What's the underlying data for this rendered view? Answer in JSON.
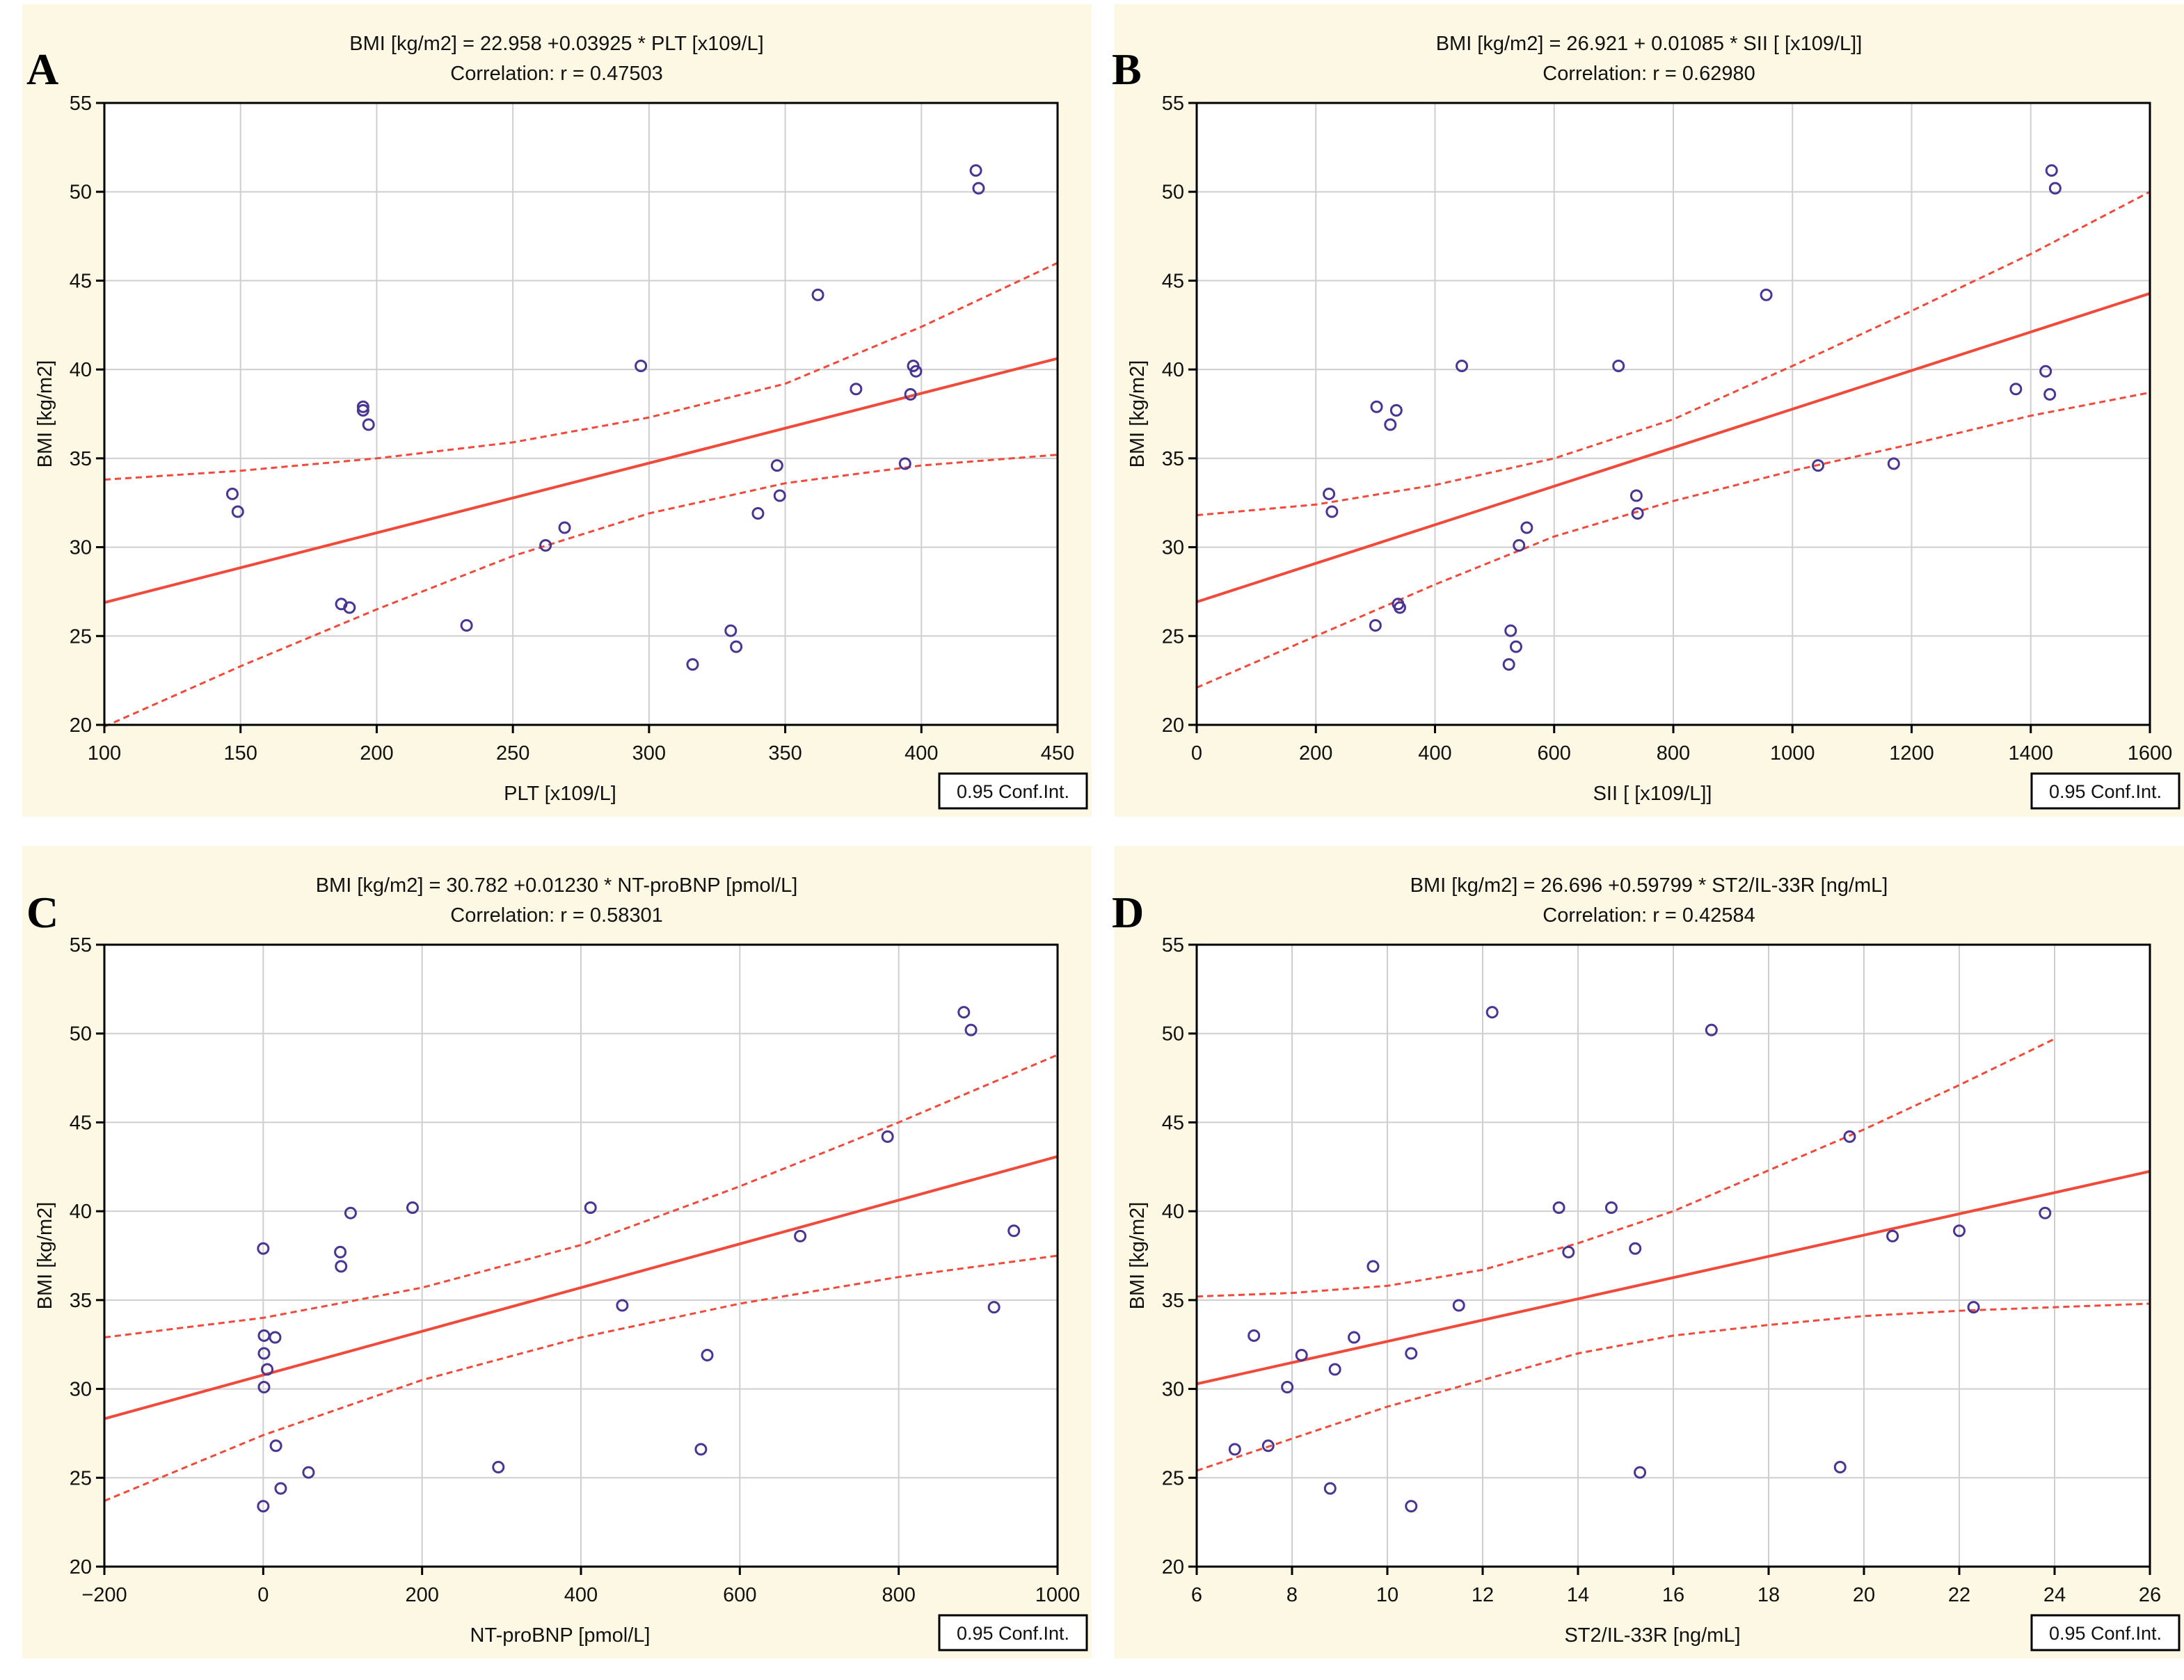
{
  "conf_int_label": "0.95 Conf.Int.",
  "chart_data": [
    {
      "panel": "A",
      "type": "scatter",
      "title": "BMI [kg/m2] = 22.958 +0.03925 * PLT [x109/L]",
      "subtitle": "Correlation: r = 0.47503",
      "xlabel": "PLT [x109/L]",
      "ylabel": "BMI [kg/m2]",
      "xlim": [
        100,
        450
      ],
      "ylim": [
        20,
        55
      ],
      "xticks": [
        100,
        150,
        200,
        250,
        300,
        350,
        400,
        450
      ],
      "xtick_labels": [
        "100",
        "150",
        "200",
        "250",
        "300",
        "350",
        "400",
        "450"
      ],
      "yticks": [
        20,
        25,
        30,
        35,
        40,
        45,
        50,
        55
      ],
      "ytick_labels": [
        "20",
        "25",
        "30",
        "35",
        "40",
        "45",
        "50",
        "55"
      ],
      "regression": {
        "intercept": 22.958,
        "slope": 0.03925
      },
      "ci_upper": [
        [
          100,
          33.8
        ],
        [
          150,
          34.3
        ],
        [
          200,
          35.0
        ],
        [
          250,
          35.9
        ],
        [
          300,
          37.3
        ],
        [
          350,
          39.2
        ],
        [
          400,
          42.4
        ],
        [
          450,
          46.0
        ]
      ],
      "ci_lower": [
        [
          100,
          19.9
        ],
        [
          150,
          23.3
        ],
        [
          200,
          26.5
        ],
        [
          250,
          29.5
        ],
        [
          300,
          31.9
        ],
        [
          350,
          33.6
        ],
        [
          400,
          34.6
        ],
        [
          450,
          35.2
        ]
      ],
      "points": [
        [
          147,
          33.0
        ],
        [
          149,
          32.0
        ],
        [
          187,
          26.8
        ],
        [
          190,
          26.6
        ],
        [
          195,
          37.9
        ],
        [
          195,
          37.7
        ],
        [
          197,
          36.9
        ],
        [
          233,
          25.6
        ],
        [
          262,
          30.1
        ],
        [
          269,
          31.1
        ],
        [
          297,
          40.2
        ],
        [
          316,
          23.4
        ],
        [
          330,
          25.3
        ],
        [
          332,
          24.4
        ],
        [
          340,
          31.9
        ],
        [
          347,
          34.6
        ],
        [
          348,
          32.9
        ],
        [
          362,
          44.2
        ],
        [
          376,
          38.9
        ],
        [
          394,
          34.7
        ],
        [
          396,
          38.6
        ],
        [
          397,
          40.2
        ],
        [
          398,
          39.9
        ],
        [
          420,
          51.2
        ],
        [
          421,
          50.2
        ]
      ],
      "conf_int": "0.95 Conf.Int."
    },
    {
      "panel": "B",
      "type": "scatter",
      "title": "BMI [kg/m2] = 26.921 + 0.01085 * SII [ [x109/L]]",
      "subtitle": "Correlation: r = 0.62980",
      "xlabel": "SII [ [x109/L]]",
      "ylabel": "BMI [kg/m2]",
      "xlim": [
        0,
        1600
      ],
      "ylim": [
        20,
        55
      ],
      "xticks": [
        0,
        200,
        400,
        600,
        800,
        1000,
        1200,
        1400,
        1600
      ],
      "xtick_labels": [
        "0",
        "200",
        "400",
        "600",
        "800",
        "1000",
        "1200",
        "1400",
        "1600"
      ],
      "yticks": [
        20,
        25,
        30,
        35,
        40,
        45,
        50,
        55
      ],
      "ytick_labels": [
        "20",
        "25",
        "30",
        "35",
        "40",
        "45",
        "50",
        "55"
      ],
      "regression": {
        "intercept": 26.921,
        "slope": 0.01085
      },
      "ci_upper": [
        [
          0,
          31.8
        ],
        [
          200,
          32.4
        ],
        [
          400,
          33.5
        ],
        [
          600,
          35.0
        ],
        [
          800,
          37.2
        ],
        [
          1000,
          40.2
        ],
        [
          1200,
          43.3
        ],
        [
          1400,
          46.5
        ],
        [
          1600,
          50.0
        ]
      ],
      "ci_lower": [
        [
          0,
          22.1
        ],
        [
          200,
          25.0
        ],
        [
          400,
          27.9
        ],
        [
          600,
          30.6
        ],
        [
          800,
          32.6
        ],
        [
          1000,
          34.3
        ],
        [
          1200,
          35.8
        ],
        [
          1400,
          37.4
        ],
        [
          1600,
          38.7
        ]
      ],
      "points": [
        [
          222,
          33.0
        ],
        [
          227,
          32.0
        ],
        [
          300,
          25.6
        ],
        [
          302,
          37.9
        ],
        [
          325,
          36.9
        ],
        [
          335,
          37.7
        ],
        [
          338,
          26.8
        ],
        [
          341,
          26.6
        ],
        [
          445,
          40.2
        ],
        [
          524,
          23.4
        ],
        [
          527,
          25.3
        ],
        [
          536,
          24.4
        ],
        [
          541,
          30.1
        ],
        [
          554,
          31.1
        ],
        [
          708,
          40.2
        ],
        [
          738,
          32.9
        ],
        [
          740,
          31.9
        ],
        [
          956,
          44.2
        ],
        [
          1043,
          34.6
        ],
        [
          1170,
          34.7
        ],
        [
          1375,
          38.9
        ],
        [
          1425,
          39.9
        ],
        [
          1432,
          38.6
        ],
        [
          1435,
          51.2
        ],
        [
          1441,
          50.2
        ]
      ],
      "conf_int": "0.95 Conf.Int."
    },
    {
      "panel": "C",
      "type": "scatter",
      "title": "BMI [kg/m2] = 30.782 +0.01230 * NT-proBNP [pmol/L]",
      "subtitle": "Correlation: r = 0.58301",
      "xlabel": "NT-proBNP [pmol/L]",
      "ylabel": "BMI [kg/m2]",
      "xlim": [
        -200,
        1000
      ],
      "ylim": [
        20,
        55
      ],
      "xticks": [
        -200,
        0,
        200,
        400,
        600,
        800,
        1000
      ],
      "xtick_labels": [
        "−200",
        "0",
        "200",
        "400",
        "600",
        "800",
        "1000"
      ],
      "yticks": [
        20,
        25,
        30,
        35,
        40,
        45,
        50,
        55
      ],
      "ytick_labels": [
        "20",
        "25",
        "30",
        "35",
        "40",
        "45",
        "50",
        "55"
      ],
      "regression": {
        "intercept": 30.782,
        "slope": 0.0123
      },
      "ci_upper": [
        [
          -200,
          32.9
        ],
        [
          0,
          34.0
        ],
        [
          200,
          35.7
        ],
        [
          400,
          38.1
        ],
        [
          600,
          41.4
        ],
        [
          800,
          45.0
        ],
        [
          1000,
          48.8
        ]
      ],
      "ci_lower": [
        [
          -200,
          23.7
        ],
        [
          0,
          27.4
        ],
        [
          200,
          30.5
        ],
        [
          400,
          32.9
        ],
        [
          600,
          34.8
        ],
        [
          800,
          36.3
        ],
        [
          1000,
          37.5
        ]
      ],
      "points": [
        [
          0,
          37.9
        ],
        [
          1,
          33.0
        ],
        [
          1,
          32.0
        ],
        [
          1,
          30.1
        ],
        [
          0,
          23.4
        ],
        [
          5,
          31.1
        ],
        [
          15,
          32.9
        ],
        [
          16,
          26.8
        ],
        [
          22,
          24.4
        ],
        [
          57,
          25.3
        ],
        [
          97,
          37.7
        ],
        [
          98,
          36.9
        ],
        [
          110,
          39.9
        ],
        [
          188,
          40.2
        ],
        [
          296,
          25.6
        ],
        [
          412,
          40.2
        ],
        [
          452,
          34.7
        ],
        [
          551,
          26.6
        ],
        [
          559,
          31.9
        ],
        [
          676,
          38.6
        ],
        [
          786,
          44.2
        ],
        [
          882,
          51.2
        ],
        [
          891,
          50.2
        ],
        [
          920,
          34.6
        ],
        [
          945,
          38.9
        ]
      ],
      "conf_int": "0.95 Conf.Int."
    },
    {
      "panel": "D",
      "type": "scatter",
      "title": "BMI [kg/m2] = 26.696 +0.59799 * ST2/IL-33R [ng/mL]",
      "subtitle": "Correlation: r = 0.42584",
      "xlabel": "ST2/IL-33R [ng/mL]",
      "ylabel": "BMI [kg/m2]",
      "xlim": [
        6,
        26
      ],
      "ylim": [
        20,
        55
      ],
      "xticks": [
        6,
        8,
        10,
        12,
        14,
        16,
        18,
        20,
        22,
        24,
        26
      ],
      "xtick_labels": [
        "6",
        "8",
        "10",
        "12",
        "14",
        "16",
        "18",
        "20",
        "22",
        "24",
        "26"
      ],
      "yticks": [
        20,
        25,
        30,
        35,
        40,
        45,
        50,
        55
      ],
      "ytick_labels": [
        "20",
        "25",
        "30",
        "35",
        "40",
        "45",
        "50",
        "55"
      ],
      "regression": {
        "intercept": 26.696,
        "slope": 0.59799
      },
      "ci_upper": [
        [
          6,
          35.2
        ],
        [
          8,
          35.4
        ],
        [
          10,
          35.8
        ],
        [
          12,
          36.7
        ],
        [
          14,
          38.2
        ],
        [
          16,
          40.0
        ],
        [
          18,
          42.3
        ],
        [
          20,
          44.6
        ],
        [
          22,
          47.1
        ],
        [
          24,
          49.7
        ]
      ],
      "ci_lower": [
        [
          6,
          25.4
        ],
        [
          8,
          27.2
        ],
        [
          10,
          29.0
        ],
        [
          12,
          30.5
        ],
        [
          14,
          32.0
        ],
        [
          16,
          33.0
        ],
        [
          18,
          33.6
        ],
        [
          20,
          34.1
        ],
        [
          22,
          34.4
        ],
        [
          24,
          34.6
        ],
        [
          26,
          34.8
        ]
      ],
      "points": [
        [
          6.8,
          26.6
        ],
        [
          7.2,
          33.0
        ],
        [
          7.5,
          26.8
        ],
        [
          7.9,
          30.1
        ],
        [
          8.2,
          31.9
        ],
        [
          8.8,
          24.4
        ],
        [
          8.9,
          31.1
        ],
        [
          9.3,
          32.9
        ],
        [
          9.7,
          36.9
        ],
        [
          10.5,
          32.0
        ],
        [
          10.5,
          23.4
        ],
        [
          11.5,
          34.7
        ],
        [
          12.2,
          51.2
        ],
        [
          13.6,
          40.2
        ],
        [
          13.8,
          37.7
        ],
        [
          14.7,
          40.2
        ],
        [
          15.2,
          37.9
        ],
        [
          15.3,
          25.3
        ],
        [
          16.8,
          50.2
        ],
        [
          19.5,
          25.6
        ],
        [
          19.7,
          44.2
        ],
        [
          20.6,
          38.6
        ],
        [
          22.0,
          38.9
        ],
        [
          22.3,
          34.6
        ],
        [
          23.8,
          39.9
        ]
      ],
      "conf_int": "0.95 Conf.Int."
    }
  ]
}
